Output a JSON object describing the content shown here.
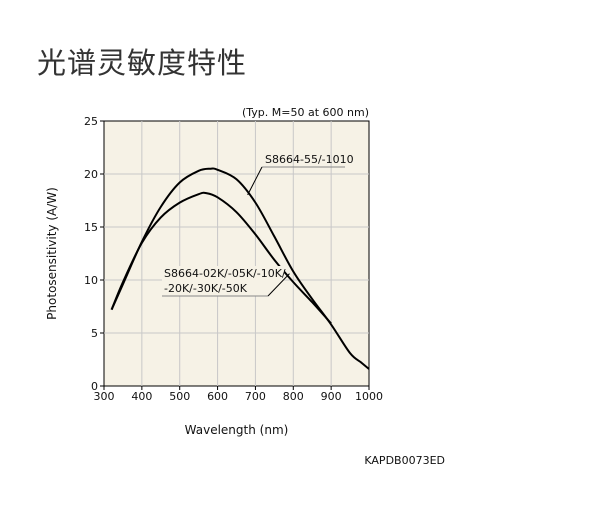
{
  "page": {
    "title": "光谱灵敏度特性",
    "doc_code": "KAPDB0073ED"
  },
  "chart_data": {
    "type": "line",
    "title": "",
    "note": "(Typ. M=50 at 600 nm)",
    "xlabel": "Wavelength (nm)",
    "ylabel": "Photosensitivity (A/W)",
    "xlim": [
      300,
      1000
    ],
    "ylim": [
      0,
      25
    ],
    "xticks": [
      300,
      400,
      500,
      600,
      700,
      800,
      900,
      1000
    ],
    "yticks": [
      0,
      5,
      10,
      15,
      20,
      25
    ],
    "grid": true,
    "colors": {
      "plot_bg": "#f6f2e6",
      "line": "#000000",
      "grid": "#c8c8c8"
    },
    "series": [
      {
        "name": "S8664-55/-1010",
        "x": [
          320,
          350,
          400,
          450,
          500,
          550,
          580,
          600,
          650,
          700,
          750,
          800,
          850,
          900,
          950,
          980,
          1000
        ],
        "y": [
          7.2,
          9.6,
          13.6,
          16.9,
          19.2,
          20.3,
          20.5,
          20.4,
          19.5,
          17.3,
          14.1,
          10.8,
          8.2,
          5.8,
          3.1,
          2.2,
          1.6
        ]
      },
      {
        "name": "S8664-02K/-05K/-10K/-20K/-30K/-50K",
        "x": [
          320,
          350,
          400,
          450,
          500,
          550,
          570,
          600,
          650,
          700,
          750,
          800,
          850,
          900
        ],
        "y": [
          7.2,
          9.8,
          13.5,
          15.9,
          17.3,
          18.1,
          18.2,
          17.8,
          16.4,
          14.3,
          11.9,
          9.8,
          7.9,
          5.9
        ]
      }
    ],
    "annotations": [
      {
        "series": 0,
        "lines": [
          "S8664-55/-1010"
        ],
        "anchor_x": 690,
        "anchor_y": 18.5
      },
      {
        "series": 1,
        "lines": [
          "S8664-02K/-05K/-10K/",
          "-20K/-30K/-50K"
        ],
        "anchor_x": 790,
        "anchor_y": 10.6
      }
    ]
  }
}
